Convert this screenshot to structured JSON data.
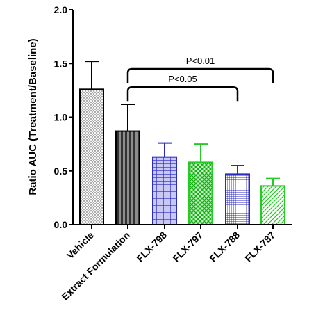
{
  "chart_data": {
    "type": "bar",
    "title": "",
    "xlabel": "",
    "ylabel": "Ratio AUC (Treatment/Baseline)",
    "ylim": [
      0,
      2.0
    ],
    "yticks": [
      "0.0",
      "0.5",
      "1.0",
      "1.5",
      "2.0"
    ],
    "categories": [
      "Vehicle",
      "Extract Formulation",
      "FLX-798",
      "FLX-797",
      "FLX-788",
      "FLX-787"
    ],
    "values": [
      1.26,
      0.87,
      0.63,
      0.58,
      0.47,
      0.36
    ],
    "error_upper": [
      1.52,
      1.12,
      0.76,
      0.75,
      0.55,
      0.43
    ],
    "bar_colors": [
      "#000000",
      "#000000",
      "#2a2ac0",
      "#22cc22",
      "#2a2ac0",
      "#22cc22"
    ],
    "bar_fills": [
      "#f2f2f2",
      "#555555",
      "#8a8ad8",
      "#6ad86a",
      "#ffffff",
      "#ffffff"
    ],
    "patterns": [
      "dots",
      "vertical-stripes",
      "grid",
      "crosshatch",
      "fine-grid",
      "diagonal"
    ],
    "grid": false,
    "legend": "none",
    "annotations": [
      {
        "text": "P<0.01",
        "from": "Extract Formulation",
        "to": "FLX-787",
        "y": 1.45
      },
      {
        "text": "P<0.05",
        "from": "Extract Formulation",
        "to": "FLX-788",
        "y": 1.28
      }
    ]
  }
}
